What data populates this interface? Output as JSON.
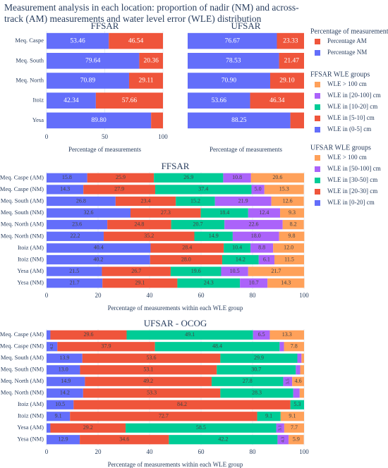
{
  "title": "Measurement analysis in each location: proportion of nadir (NM) and across-track (AM) measurements and water level error (WLE) distribution",
  "chart_data": [
    {
      "type": "bar",
      "orientation": "h",
      "barmode": "stack",
      "title": "FFSAR",
      "legend_title": "Percentage of measurements",
      "categories": [
        "Meq. Caspe",
        "Meq. South",
        "Meq. North",
        "Itoiz",
        "Yesa"
      ],
      "series": [
        {
          "name": "Percentage NM",
          "color": "#636efa",
          "values": [
            53.46,
            79.64,
            70.89,
            42.34,
            89.8
          ],
          "value_labels": [
            "53.46",
            "79.64",
            "70.89",
            "42.34",
            "89.80"
          ]
        },
        {
          "name": "Percentage AM",
          "color": "#ef553b",
          "values": [
            46.54,
            20.36,
            29.11,
            57.66,
            10.2
          ],
          "value_labels": [
            "46.54",
            "20.36",
            "29.11",
            "57.66",
            null
          ]
        }
      ],
      "xlim": [
        0,
        100
      ],
      "xticks": [
        0,
        50,
        100
      ],
      "xlabel": "Percentage of measurements",
      "grid": true
    },
    {
      "type": "bar",
      "orientation": "h",
      "barmode": "stack",
      "title": "UFSAR",
      "series": [
        {
          "color": "#636efa",
          "values": [
            76.67,
            78.53,
            70.9,
            53.66,
            88.25
          ],
          "value_labels": [
            "76.67",
            "78.53",
            "70.90",
            "53.66",
            "88.25"
          ]
        },
        {
          "color": "#ef553b",
          "values": [
            23.33,
            21.47,
            29.1,
            46.34,
            11.75
          ],
          "value_labels": [
            "23.33",
            "21.47",
            "29.10",
            "46.34",
            null
          ]
        }
      ],
      "xlim": [
        0,
        100
      ],
      "xlabel": "Percentage of measurements",
      "grid": true
    },
    {
      "type": "bar",
      "orientation": "h",
      "barmode": "stack",
      "title": "FFSAR",
      "legend_title": "FFSAR WLE groups",
      "categories": [
        "Meq. Caspe (AM)",
        "Meq. Caspe (NM)",
        "Meq. South (AM)",
        "Meq. South (NM)",
        "Meq. North (AM)",
        "Meq. North (NM)",
        "Itoiz (AM)",
        "Itoiz (NM)",
        "Yesa (AM)",
        "Yesa (NM)"
      ],
      "series": [
        {
          "name": "WLE in (0-5] cm",
          "color": "#636efa",
          "values": [
            15.8,
            14.3,
            26.8,
            32.6,
            23.6,
            22.2,
            40.4,
            40.2,
            21.5,
            21.7
          ],
          "value_labels": [
            "15.8",
            "14.3",
            "26.8",
            "32.6",
            "23.6",
            "22.2",
            "40.4",
            "40.2",
            "21.5",
            "21.7"
          ]
        },
        {
          "name": "WLE in [5-10] cm",
          "color": "#ef553b",
          "values": [
            25.9,
            27.9,
            23.4,
            27.3,
            24.8,
            35.2,
            28.4,
            28.0,
            26.7,
            29.1
          ],
          "value_labels": [
            "25.9",
            "27.9",
            "23.4",
            "27.3",
            "24.8",
            "35.2",
            "28.4",
            "28.0",
            "26.7",
            "29.1"
          ]
        },
        {
          "name": "WLE in [10-20] cm",
          "color": "#00cc96",
          "values": [
            26.9,
            37.4,
            15.2,
            18.4,
            20.7,
            14.9,
            10.4,
            14.2,
            19.6,
            24.3
          ],
          "value_labels": [
            "26.9",
            "37.4",
            "15.2",
            "18.4",
            "20.7",
            "14.9",
            "10.4",
            "14.2",
            "19.6",
            "24.3"
          ]
        },
        {
          "name": "WLE in [20-100] cm",
          "color": "#ab63fa",
          "values": [
            10.8,
            5.0,
            21.9,
            12.4,
            22.6,
            18.0,
            8.8,
            6.1,
            10.5,
            10.7
          ],
          "value_labels": [
            "10.8",
            "5.0",
            "21.9",
            "12.4",
            "22.6",
            "18.0",
            "8.8",
            "6.1",
            "10.5",
            "10.7"
          ]
        },
        {
          "name": "WLE > 100 cm",
          "color": "#ffa15a",
          "values": [
            20.6,
            15.3,
            12.6,
            9.3,
            8.2,
            9.8,
            12.0,
            11.5,
            21.7,
            14.3
          ],
          "value_labels": [
            "20.6",
            "15.3",
            "12.6",
            "9.3",
            "8.2",
            "9.8",
            "12.0",
            "11.5",
            "21.7",
            "14.3"
          ]
        }
      ],
      "xlim": [
        0,
        100
      ],
      "xticks": [
        0,
        20,
        40,
        60,
        80,
        100
      ],
      "xlabel": "Percentage of measurements within each WLE group",
      "grid": true
    },
    {
      "type": "bar",
      "orientation": "h",
      "barmode": "stack",
      "title": "UFSAR - OCOG",
      "legend_title": "UFSAR WLE groups",
      "categories": [
        "Meq. Caspe (AM)",
        "Meq. Caspe (NM)",
        "Meq. South (AM)",
        "Meq. South (NM)",
        "Meq. North (AM)",
        "Meq. North (NM)",
        "Itoiz (AM)",
        "Itoiz (NM)",
        "Yesa (AM)",
        "Yesa (NM)"
      ],
      "series": [
        {
          "name": "WLE in [0-20] cm",
          "color": "#636efa",
          "values": [
            1.5,
            4.2,
            13.9,
            13.0,
            14.9,
            14.2,
            10.5,
            9.1,
            1.5,
            12.9
          ],
          "value_labels": [
            null,
            "4.2",
            "13.9",
            "13.0",
            "14.9",
            "14.2",
            "10.5",
            "9.1",
            null,
            "12.9"
          ]
        },
        {
          "name": "WLE in [20-30] cm",
          "color": "#ef553b",
          "values": [
            29.6,
            37.9,
            53.6,
            53.1,
            49.2,
            53.3,
            84.2,
            72.7,
            29.2,
            34.6
          ],
          "value_labels": [
            "29.6",
            "37.9",
            "53.6",
            "53.1",
            "49.2",
            "53.3",
            "84.2",
            "72.7",
            "29.2",
            "34.6"
          ]
        },
        {
          "name": "WLE in [30-50] cm",
          "color": "#00cc96",
          "values": [
            49.1,
            48.4,
            29.9,
            30.7,
            27.8,
            28.3,
            5.3,
            9.1,
            58.5,
            42.2
          ],
          "value_labels": [
            "49.1",
            "48.4",
            "29.9",
            "30.7",
            "27.8",
            "28.3",
            "5.3",
            "9.1",
            "58.5",
            "42.2"
          ]
        },
        {
          "name": "WLE in [50-100] cm",
          "color": "#ab63fa",
          "values": [
            6.5,
            1.7,
            1.6,
            1.7,
            3.5,
            2.5,
            0,
            0,
            3.1,
            4.3
          ],
          "value_labels": [
            "6.5",
            null,
            null,
            null,
            "3.5",
            null,
            null,
            null,
            "3.1",
            "4.3"
          ]
        },
        {
          "name": "WLE > 100 cm",
          "color": "#ffa15a",
          "values": [
            13.3,
            7.8,
            1.0,
            1.5,
            4.6,
            1.7,
            0,
            9.1,
            7.7,
            5.9
          ],
          "value_labels": [
            "13.3",
            "7.8",
            null,
            null,
            "4.6",
            null,
            null,
            "9.1",
            "7.7",
            "5.9"
          ]
        }
      ],
      "xlim": [
        0,
        100
      ],
      "xticks": [
        0,
        20,
        40,
        60,
        80,
        100
      ],
      "xlabel": "Percentage of measurements within each WLE group",
      "grid": true
    }
  ]
}
